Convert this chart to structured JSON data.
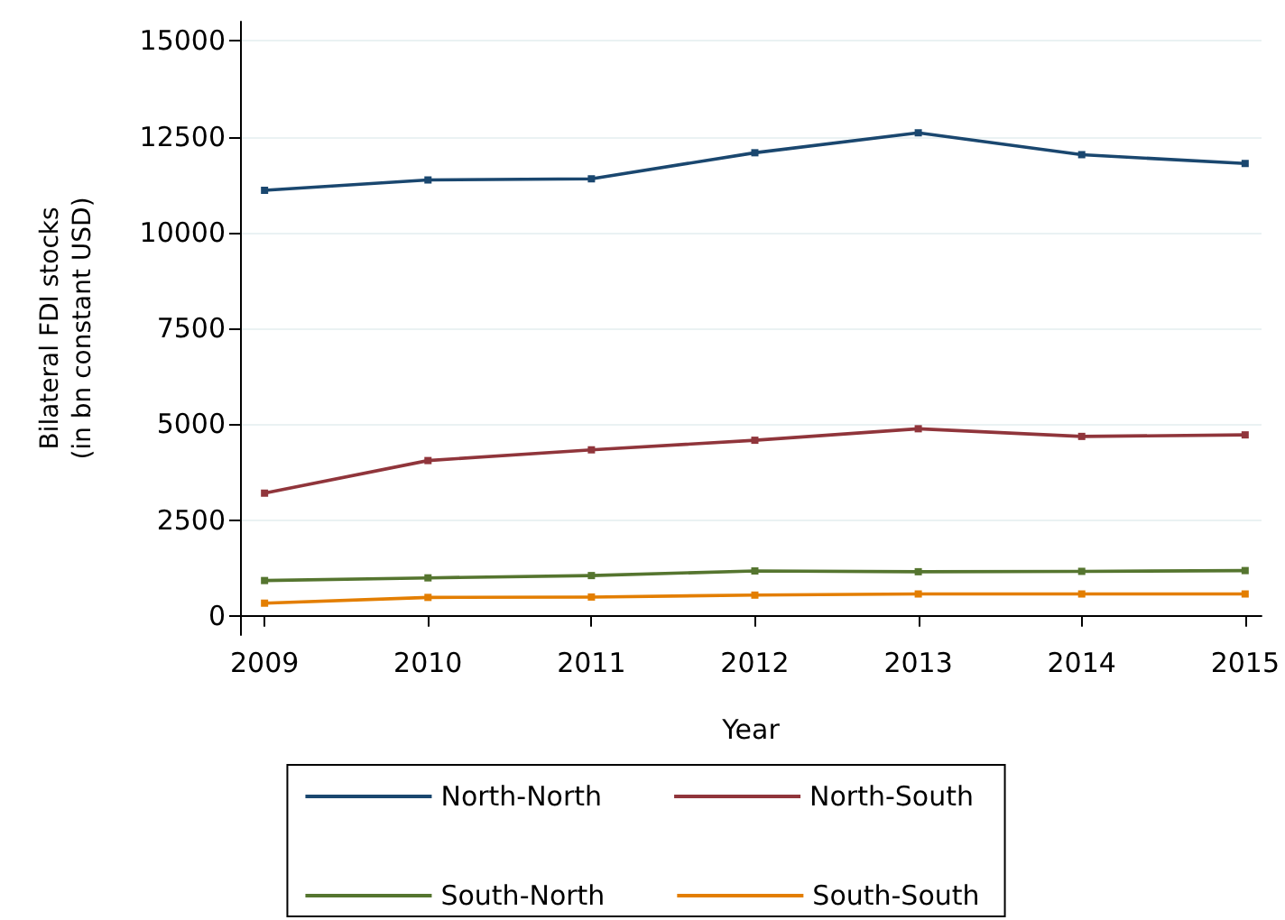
{
  "chart_data": {
    "type": "line",
    "xlabel": "Year",
    "ylabel": "Bilateral FDI stocks\n(in bn constant USD)",
    "x": [
      2009,
      2010,
      2011,
      2012,
      2013,
      2014,
      2015
    ],
    "series": [
      {
        "name": "North-North",
        "color": "#1a476f",
        "values": [
          11100,
          11370,
          11400,
          12080,
          12600,
          12030,
          11800
        ]
      },
      {
        "name": "North-South",
        "color": "#90353b",
        "values": [
          3200,
          4050,
          4330,
          4580,
          4880,
          4680,
          4720
        ]
      },
      {
        "name": "South-North",
        "color": "#55752f",
        "values": [
          920,
          990,
          1050,
          1170,
          1150,
          1160,
          1180
        ]
      },
      {
        "name": "South-South",
        "color": "#e37e00",
        "values": [
          330,
          480,
          490,
          540,
          570,
          570,
          570
        ]
      }
    ],
    "xlim": [
      2008.85,
      2015.1
    ],
    "xticks": [
      2009,
      2010,
      2011,
      2012,
      2013,
      2014,
      2015
    ],
    "ylim": [
      -500,
      15500
    ],
    "yticks": [
      0,
      2500,
      5000,
      7500,
      10000,
      12500,
      15000
    ],
    "grid": "y",
    "legend": "bottom",
    "marker": "square",
    "line_style": "solid"
  }
}
